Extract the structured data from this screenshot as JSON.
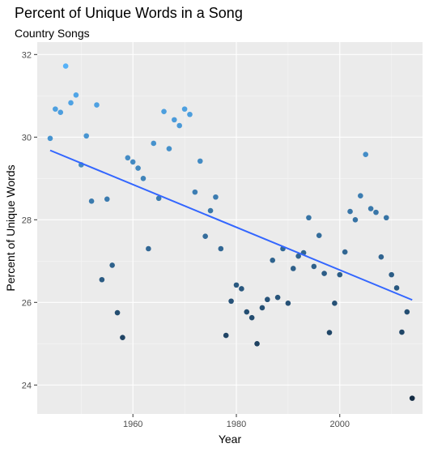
{
  "chart_data": {
    "type": "scatter",
    "title": "Percent of Unique Words in a Song",
    "subtitle": "Country Songs",
    "xlabel": "Year",
    "ylabel": "Percent of Unique Words",
    "xlim": [
      1941.5,
      2016
    ],
    "ylim": [
      23.3,
      32.3
    ],
    "xticks": [
      1960,
      1980,
      2000
    ],
    "yticks": [
      24,
      26,
      28,
      30,
      32
    ],
    "grid": true,
    "legend": "none",
    "colors": {
      "panel": "#ebebeb",
      "grid_major": "#ffffff",
      "grid_minor": "#f5f5f5",
      "trend_line": "#3366ff",
      "point_low": "#132b43",
      "point_high": "#56b1f7"
    },
    "points": [
      {
        "x": 1944,
        "y": 29.97
      },
      {
        "x": 1945,
        "y": 30.68
      },
      {
        "x": 1946,
        "y": 30.6
      },
      {
        "x": 1947,
        "y": 31.72
      },
      {
        "x": 1948,
        "y": 30.83
      },
      {
        "x": 1949,
        "y": 31.02
      },
      {
        "x": 1950,
        "y": 29.33
      },
      {
        "x": 1951,
        "y": 30.03
      },
      {
        "x": 1952,
        "y": 28.45
      },
      {
        "x": 1953,
        "y": 30.78
      },
      {
        "x": 1954,
        "y": 26.55
      },
      {
        "x": 1955,
        "y": 28.5
      },
      {
        "x": 1956,
        "y": 26.9
      },
      {
        "x": 1957,
        "y": 25.75
      },
      {
        "x": 1958,
        "y": 25.15
      },
      {
        "x": 1959,
        "y": 29.5
      },
      {
        "x": 1960,
        "y": 29.4
      },
      {
        "x": 1961,
        "y": 29.25
      },
      {
        "x": 1962,
        "y": 29.0
      },
      {
        "x": 1963,
        "y": 27.3
      },
      {
        "x": 1964,
        "y": 29.85
      },
      {
        "x": 1965,
        "y": 28.52
      },
      {
        "x": 1966,
        "y": 30.62
      },
      {
        "x": 1967,
        "y": 29.72
      },
      {
        "x": 1968,
        "y": 30.42
      },
      {
        "x": 1969,
        "y": 30.28
      },
      {
        "x": 1970,
        "y": 30.68
      },
      {
        "x": 1971,
        "y": 30.55
      },
      {
        "x": 1972,
        "y": 28.67
      },
      {
        "x": 1973,
        "y": 29.42
      },
      {
        "x": 1974,
        "y": 27.6
      },
      {
        "x": 1975,
        "y": 28.22
      },
      {
        "x": 1976,
        "y": 28.55
      },
      {
        "x": 1977,
        "y": 27.3
      },
      {
        "x": 1978,
        "y": 25.2
      },
      {
        "x": 1979,
        "y": 26.03
      },
      {
        "x": 1980,
        "y": 26.42
      },
      {
        "x": 1981,
        "y": 26.33
      },
      {
        "x": 1982,
        "y": 25.77
      },
      {
        "x": 1983,
        "y": 25.63
      },
      {
        "x": 1984,
        "y": 25.0
      },
      {
        "x": 1985,
        "y": 25.87
      },
      {
        "x": 1986,
        "y": 26.07
      },
      {
        "x": 1987,
        "y": 27.02
      },
      {
        "x": 1988,
        "y": 26.12
      },
      {
        "x": 1989,
        "y": 27.3
      },
      {
        "x": 1990,
        "y": 25.98
      },
      {
        "x": 1991,
        "y": 26.82
      },
      {
        "x": 1992,
        "y": 27.12
      },
      {
        "x": 1993,
        "y": 27.2
      },
      {
        "x": 1994,
        "y": 28.05
      },
      {
        "x": 1995,
        "y": 26.87
      },
      {
        "x": 1996,
        "y": 27.62
      },
      {
        "x": 1997,
        "y": 26.7
      },
      {
        "x": 1998,
        "y": 25.27
      },
      {
        "x": 1999,
        "y": 25.98
      },
      {
        "x": 2000,
        "y": 26.67
      },
      {
        "x": 2001,
        "y": 27.22
      },
      {
        "x": 2002,
        "y": 28.2
      },
      {
        "x": 2003,
        "y": 28.0
      },
      {
        "x": 2004,
        "y": 28.58
      },
      {
        "x": 2005,
        "y": 29.58
      },
      {
        "x": 2006,
        "y": 28.27
      },
      {
        "x": 2007,
        "y": 28.18
      },
      {
        "x": 2008,
        "y": 27.1
      },
      {
        "x": 2009,
        "y": 28.05
      },
      {
        "x": 2010,
        "y": 26.67
      },
      {
        "x": 2011,
        "y": 26.35
      },
      {
        "x": 2012,
        "y": 25.28
      },
      {
        "x": 2013,
        "y": 25.77
      },
      {
        "x": 2014,
        "y": 23.68
      }
    ],
    "trend": {
      "x": [
        1944,
        2014
      ],
      "y": [
        29.68,
        26.06
      ]
    }
  }
}
